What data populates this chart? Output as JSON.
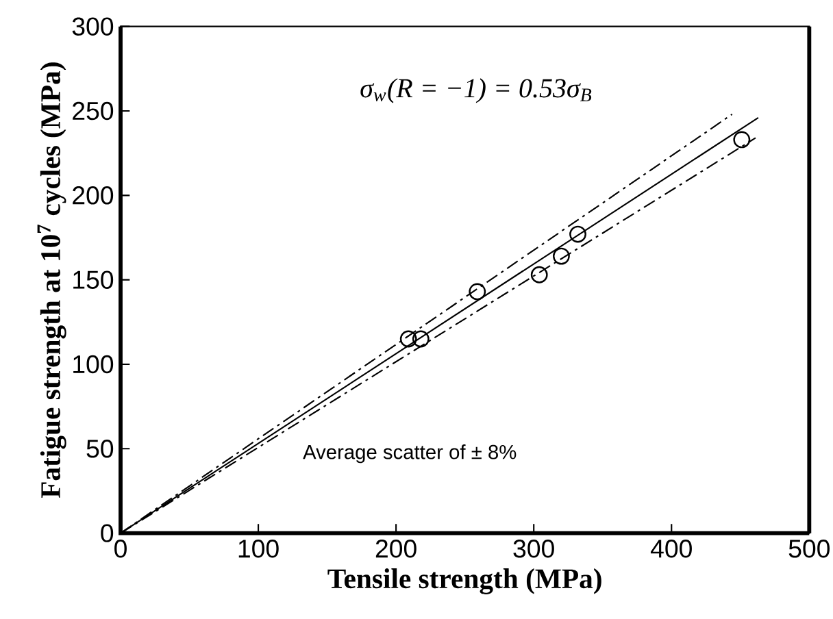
{
  "chart_data": {
    "type": "scatter",
    "xlabel": "Tensile strength (MPa)",
    "ylabel": "Fatigue strength at 10$^{7}$ cycles (MPa)",
    "xlim": [
      0,
      500
    ],
    "ylim": [
      0,
      300
    ],
    "xticks": [
      0,
      100,
      200,
      300,
      400,
      500
    ],
    "yticks": [
      0,
      50,
      100,
      150,
      200,
      250,
      300
    ],
    "marker": "circle",
    "annotations": [
      "σ$_{w}$(R = −1) = 0.53σ$_{B}$",
      "Average scatter of ± 8%"
    ],
    "series": [
      {
        "color": "#000000",
        "x": [
          209,
          218,
          259,
          304,
          320,
          332,
          451
        ],
        "values": [
          115,
          115,
          143,
          153,
          164,
          177,
          233
        ]
      },
      {
        "type": "line",
        "color": "#000000",
        "line_style": "solid",
        "marker": "none",
        "x": [
          0,
          463
        ],
        "values": [
          0,
          246
        ]
      },
      {
        "type": "line",
        "color": "#000000",
        "line_style": "dashdot",
        "marker": "none",
        "x": [
          0,
          444
        ],
        "values": [
          0,
          248
        ]
      },
      {
        "type": "line",
        "color": "#000000",
        "line_style": "dashdot",
        "marker": "none",
        "x": [
          0,
          461
        ],
        "values": [
          0,
          234
        ]
      }
    ]
  }
}
